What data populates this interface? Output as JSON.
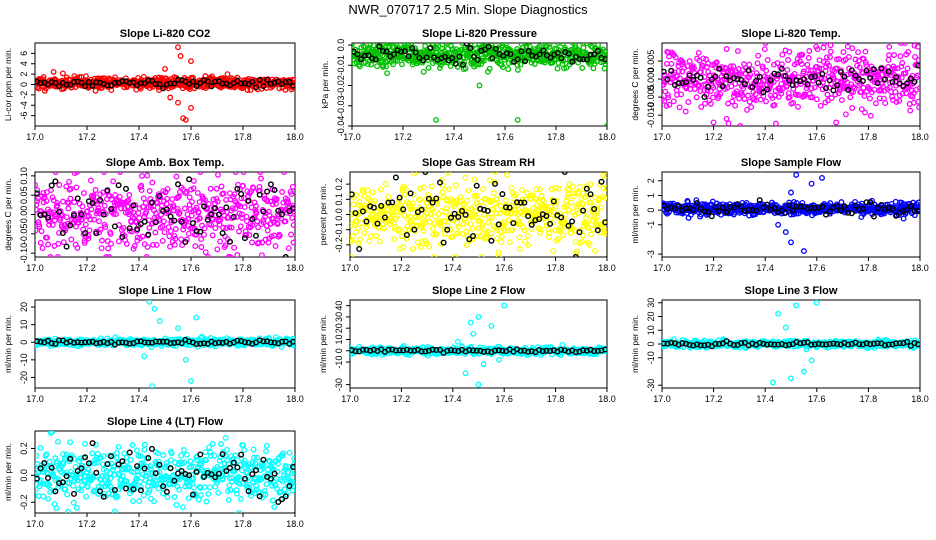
{
  "title": "NWR_070717  2.5 Min. Slope Diagnostics",
  "colors": {
    "axis": "#000000",
    "secondary": "#000000"
  },
  "chart_data": [
    {
      "type": "scatter",
      "title": "Slope Li-820 CO2",
      "ylabel": "Li-cor ppm per min.",
      "color": "#ff0000",
      "xlim": [
        17.0,
        18.0
      ],
      "ylim": [
        -8,
        8
      ],
      "xticks": [
        "17.0",
        "17.2",
        "17.4",
        "17.6",
        "17.8",
        "18.0"
      ],
      "yticks": [
        -6,
        -4,
        -2,
        0,
        2,
        4,
        6
      ],
      "ytick_labels": [
        "-6",
        "-4",
        "-2",
        "0",
        "2",
        "4",
        "6"
      ],
      "center": 0.3,
      "spread": 0.6,
      "black_spread": 0.4,
      "seed": 11,
      "spikes": [
        [
          17.55,
          7.2
        ],
        [
          17.57,
          -6.5
        ],
        [
          17.58,
          -6.8
        ],
        [
          17.52,
          -2.5
        ],
        [
          17.6,
          4.5
        ],
        [
          17.55,
          -3.5
        ],
        [
          17.5,
          3
        ],
        [
          17.6,
          -4.5
        ],
        [
          17.56,
          5.5
        ]
      ]
    },
    {
      "type": "scatter",
      "title": "Slope Li-820 Pressure",
      "ylabel": "kPa per min.",
      "color": "#00c000",
      "xlim": [
        17.0,
        18.0
      ],
      "ylim": [
        -0.04,
        0.001
      ],
      "xticks": [
        "17.0",
        "17.2",
        "17.4",
        "17.6",
        "17.8",
        "18.0"
      ],
      "yticks": [
        -0.04,
        -0.03,
        -0.02,
        -0.01,
        0.0
      ],
      "ytick_labels": [
        "-0.04",
        "-0.03",
        "-0.02",
        "-0.01",
        "0.0"
      ],
      "center": -0.005,
      "spread": 0.003,
      "black_spread": 0.002,
      "seed": 22,
      "spikes": [
        [
          17.33,
          -0.037
        ],
        [
          17.65,
          -0.037
        ],
        [
          18.0,
          -0.04
        ],
        [
          17.5,
          -0.02
        ]
      ]
    },
    {
      "type": "scatter",
      "title": "Slope Li-820 Temp.",
      "ylabel": "degrees C per min.",
      "color": "#ff00ff",
      "xlim": [
        17.0,
        18.0
      ],
      "ylim": [
        -0.013,
        0.01
      ],
      "xticks": [
        "17.0",
        "17.2",
        "17.4",
        "17.6",
        "17.8",
        "18.0"
      ],
      "yticks": [
        -0.01,
        -0.005,
        0.0,
        0.005
      ],
      "ytick_labels": [
        "-0.010",
        "-0.005",
        "0.000",
        "0.005"
      ],
      "center": 0.0,
      "spread": 0.004,
      "black_spread": 0.002,
      "seed": 33,
      "spikes": [
        [
          17.2,
          -0.012
        ],
        [
          17.25,
          -0.011
        ],
        [
          17.72,
          0.009
        ]
      ]
    },
    {
      "type": "scatter",
      "title": "Slope Amb. Box Temp.",
      "ylabel": "degrees C per min.",
      "color": "#ff00ff",
      "xlim": [
        17.0,
        18.0
      ],
      "ylim": [
        -0.11,
        0.11
      ],
      "xticks": [
        "17.0",
        "17.2",
        "17.4",
        "17.6",
        "17.8",
        "18.0"
      ],
      "yticks": [
        -0.1,
        -0.05,
        0.0,
        0.05,
        0.1
      ],
      "ytick_labels": [
        "-0.10",
        "-0.05",
        "0.00",
        "0.05",
        "0.10"
      ],
      "center": 0.0,
      "spread": 0.05,
      "black_spread": 0.05,
      "seed": 44,
      "spikes": []
    },
    {
      "type": "scatter",
      "title": "Slope Gas Stream RH",
      "ylabel": "percent per min.",
      "color": "#ffff00",
      "xlim": [
        17.0,
        18.0
      ],
      "ylim": [
        -0.28,
        0.28
      ],
      "xticks": [
        "17.0",
        "17.2",
        "17.4",
        "17.6",
        "17.8",
        "18.0"
      ],
      "yticks": [
        -0.2,
        -0.1,
        0.0,
        0.1,
        0.2
      ],
      "ytick_labels": [
        "-0.2",
        "-0.1",
        "0.0",
        "0.1",
        "0.2"
      ],
      "center": 0.0,
      "spread": 0.11,
      "black_spread": 0.12,
      "seed": 55,
      "spikes": []
    },
    {
      "type": "scatter",
      "title": "Slope Sample Flow",
      "ylabel": "ml/min per min.",
      "color": "#0000ff",
      "xlim": [
        17.0,
        18.0
      ],
      "ylim": [
        -3.2,
        2.6
      ],
      "xticks": [
        "17.0",
        "17.2",
        "17.4",
        "17.6",
        "17.8",
        "18.0"
      ],
      "yticks": [
        -3,
        -1,
        0,
        1,
        2
      ],
      "ytick_labels": [
        "-3",
        "-1",
        "0",
        "1",
        "2"
      ],
      "center": 0.1,
      "spread": 0.2,
      "black_spread": 0.2,
      "seed": 66,
      "spikes": [
        [
          17.52,
          2.4
        ],
        [
          17.55,
          -2.8
        ],
        [
          17.48,
          -1.5
        ],
        [
          17.58,
          1.8
        ],
        [
          17.5,
          1.2
        ],
        [
          17.45,
          -1.0
        ],
        [
          17.62,
          2.2
        ],
        [
          17.5,
          -2.2
        ]
      ]
    },
    {
      "type": "scatter",
      "title": "Slope Line 1 Flow",
      "ylabel": "ml/min per min.",
      "color": "#00ffff",
      "xlim": [
        17.0,
        18.0
      ],
      "ylim": [
        -26,
        24
      ],
      "xticks": [
        "17.0",
        "17.2",
        "17.4",
        "17.6",
        "17.8",
        "18.0"
      ],
      "yticks": [
        -20,
        -10,
        0,
        10,
        20
      ],
      "ytick_labels": [
        "-20",
        "-10",
        "0",
        "10",
        "20"
      ],
      "center": 0.0,
      "spread": 1.0,
      "black_spread": 0.6,
      "seed": 77,
      "spikes": [
        [
          17.44,
          23
        ],
        [
          17.46,
          19
        ],
        [
          17.45,
          -25
        ],
        [
          17.6,
          -22
        ],
        [
          17.55,
          8
        ],
        [
          17.58,
          -10
        ],
        [
          17.48,
          12
        ],
        [
          17.42,
          -8
        ],
        [
          17.62,
          14
        ]
      ]
    },
    {
      "type": "scatter",
      "title": "Slope Line 2 Flow",
      "ylabel": "ml/min per min.",
      "color": "#00ffff",
      "xlim": [
        17.0,
        18.0
      ],
      "ylim": [
        -33,
        45
      ],
      "xticks": [
        "17.0",
        "17.2",
        "17.4",
        "17.6",
        "17.8",
        "18.0"
      ],
      "yticks": [
        -30,
        -10,
        0,
        10,
        20,
        30,
        40
      ],
      "ytick_labels": [
        "-30",
        "-10",
        "0",
        "10",
        "20",
        "30",
        "40"
      ],
      "center": 0.0,
      "spread": 1.5,
      "black_spread": 0.8,
      "seed": 88,
      "spikes": [
        [
          17.5,
          30
        ],
        [
          17.55,
          22
        ],
        [
          17.45,
          -20
        ],
        [
          17.5,
          -30
        ],
        [
          17.6,
          40
        ],
        [
          17.48,
          15
        ],
        [
          17.52,
          -12
        ],
        [
          17.42,
          8
        ],
        [
          17.58,
          -8
        ],
        [
          17.47,
          25
        ]
      ]
    },
    {
      "type": "scatter",
      "title": "Slope Line 3 Flow",
      "ylabel": "ml/min per min.",
      "color": "#00ffff",
      "xlim": [
        17.0,
        18.0
      ],
      "ylim": [
        -32,
        32
      ],
      "xticks": [
        "17.0",
        "17.2",
        "17.4",
        "17.6",
        "17.8",
        "18.0"
      ],
      "yticks": [
        -30,
        -10,
        0,
        10,
        20,
        30
      ],
      "ytick_labels": [
        "-30",
        "-10",
        "0",
        "10",
        "20",
        "30"
      ],
      "center": 0.0,
      "spread": 1.2,
      "black_spread": 0.7,
      "seed": 99,
      "spikes": [
        [
          17.45,
          22
        ],
        [
          17.52,
          28
        ],
        [
          17.43,
          -28
        ],
        [
          17.6,
          30
        ],
        [
          17.55,
          -20
        ],
        [
          17.48,
          12
        ],
        [
          17.58,
          -12
        ],
        [
          17.5,
          -25
        ]
      ]
    },
    {
      "type": "scatter",
      "title": "Slope Line 4 (LT) Flow",
      "ylabel": "ml/min per min.",
      "color": "#00ffff",
      "xlim": [
        17.0,
        18.0
      ],
      "ylim": [
        -0.28,
        0.33
      ],
      "xticks": [
        "17.0",
        "17.2",
        "17.4",
        "17.6",
        "17.8",
        "18.0"
      ],
      "yticks": [
        -0.2,
        0.0,
        0.2
      ],
      "ytick_labels": [
        "-0.2",
        "0.0",
        "0.2"
      ],
      "center": 0.0,
      "spread": 0.1,
      "black_spread": 0.1,
      "seed": 111,
      "spikes": []
    }
  ]
}
